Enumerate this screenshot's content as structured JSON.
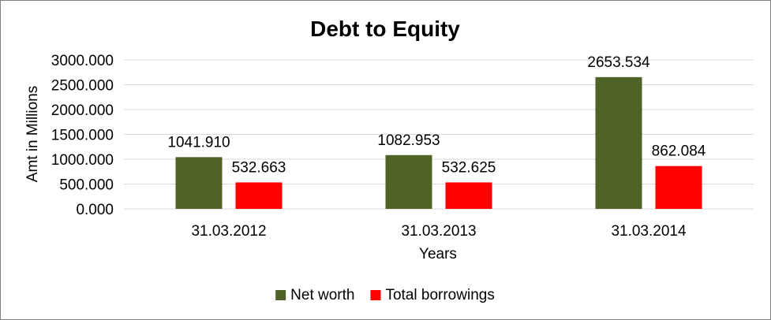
{
  "chart_data": {
    "type": "bar",
    "title": "Debt to Equity",
    "xlabel": "Years",
    "ylabel": "Amt in Millions",
    "categories": [
      "31.03.2012",
      "31.03.2013",
      "31.03.2014"
    ],
    "series": [
      {
        "name": "Net worth",
        "values": [
          1041.91,
          1082.953,
          2653.534
        ],
        "labels": [
          "1041.910",
          "1082.953",
          "2653.534"
        ],
        "color": "#4F6228"
      },
      {
        "name": "Total borrowings",
        "values": [
          532.663,
          532.625,
          862.084
        ],
        "labels": [
          "532.663",
          "532.625",
          "862.084"
        ],
        "color": "#FF0000"
      }
    ],
    "ylim": [
      0,
      3000
    ],
    "yticks": [
      "0.000",
      "500.000",
      "1000.000",
      "1500.000",
      "2000.000",
      "2500.000",
      "3000.000"
    ],
    "grid": true,
    "legend_position": "bottom"
  }
}
